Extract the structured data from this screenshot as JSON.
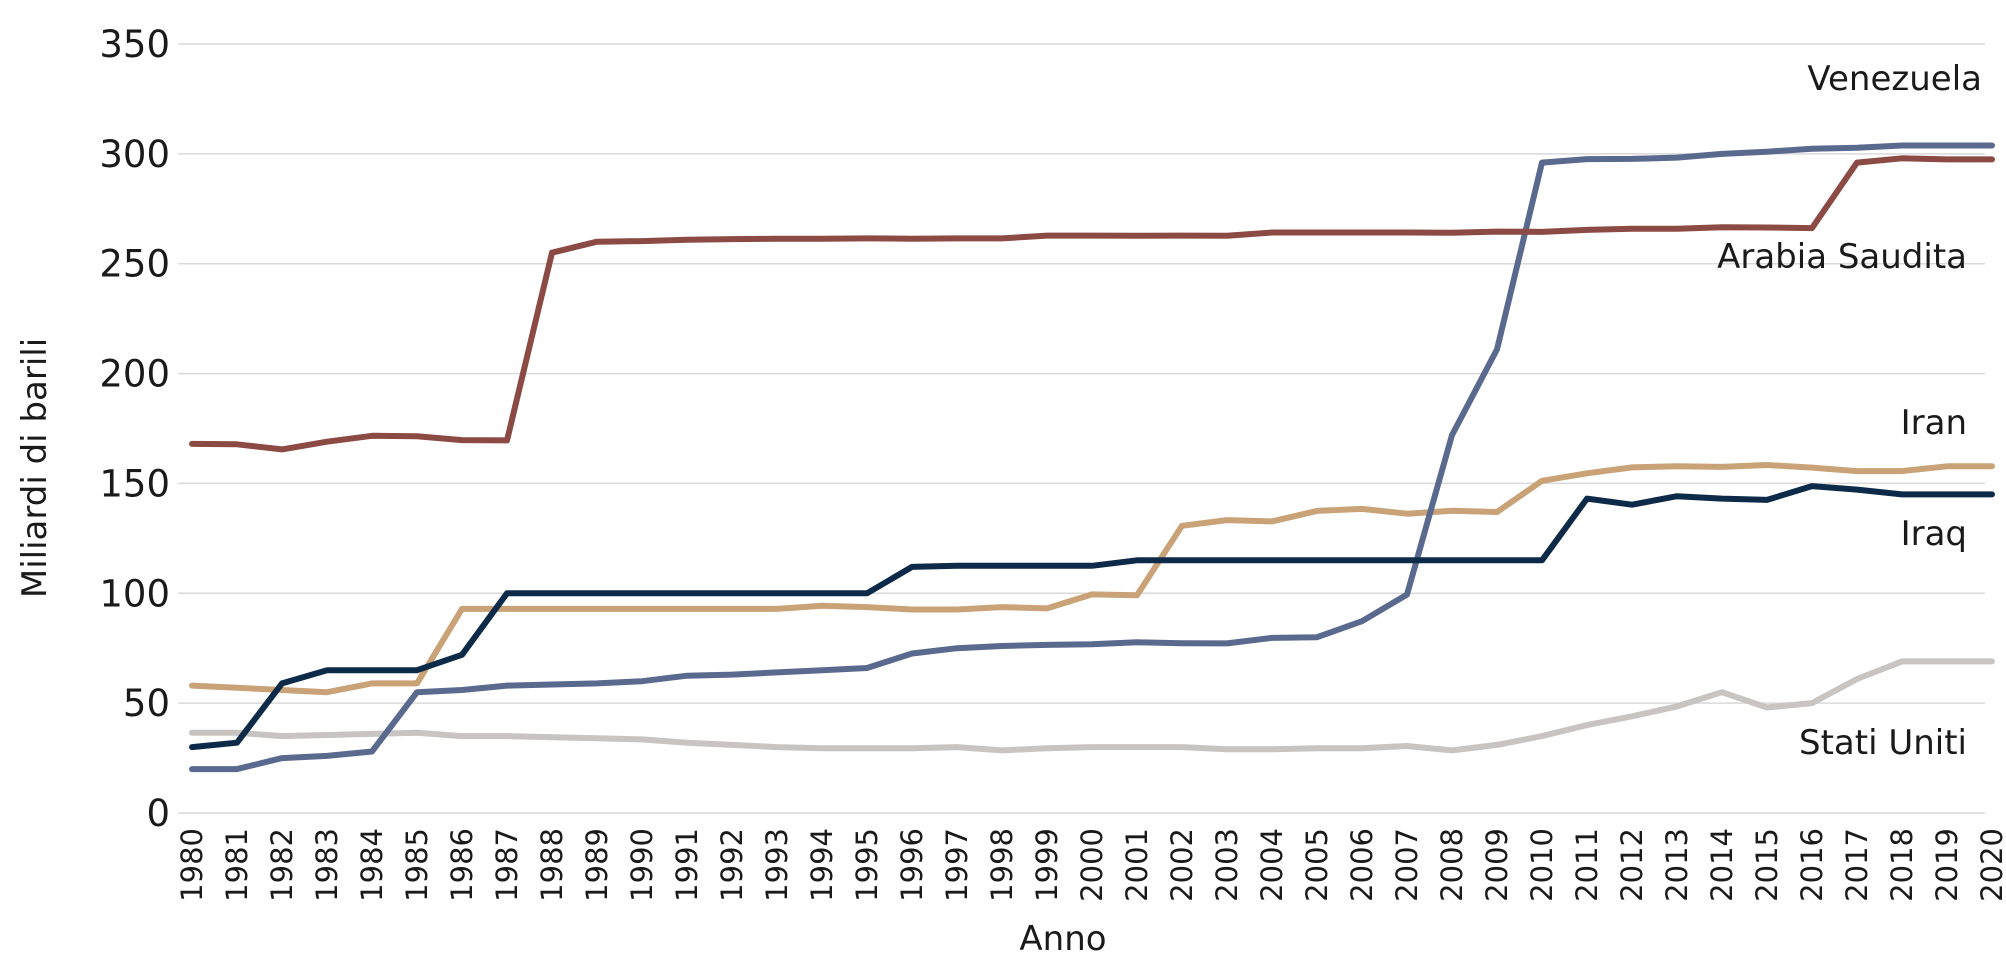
{
  "chart_data": {
    "type": "line",
    "title": "",
    "xlabel": "Anno",
    "ylabel": "Miliardi di barili",
    "ylim": [
      0,
      350
    ],
    "yticks": [
      0,
      50,
      100,
      150,
      200,
      250,
      300,
      350
    ],
    "grid": "horizontal",
    "legend": "inline labels at right",
    "categories": [
      "1980",
      "1981",
      "1982",
      "1983",
      "1984",
      "1985",
      "1986",
      "1987",
      "1988",
      "1989",
      "1990",
      "1991",
      "1992",
      "1993",
      "1994",
      "1995",
      "1996",
      "1997",
      "1998",
      "1999",
      "2000",
      "2001",
      "2002",
      "2003",
      "2004",
      "2005",
      "2006",
      "2007",
      "2008",
      "2009",
      "2010",
      "2011",
      "2012",
      "2013",
      "2014",
      "2015",
      "2016",
      "2017",
      "2018",
      "2019",
      "2020"
    ],
    "series": [
      {
        "name": "Venezuela",
        "color": "#5a6a8e",
        "values": [
          20,
          20,
          25,
          26,
          28,
          55,
          56,
          58,
          58.5,
          59,
          60,
          62.5,
          63,
          64,
          65,
          66,
          72.6,
          75,
          76,
          76.5,
          76.8,
          77.7,
          77.3,
          77.2,
          79.7,
          80,
          87.3,
          99.4,
          172,
          211,
          296,
          297.6,
          297.7,
          298.3,
          300,
          301,
          302.3,
          302.8,
          303.8,
          303.8,
          303.8
        ]
      },
      {
        "name": "Arabia Saudita",
        "color": "#8b4a44",
        "values": [
          168,
          167.8,
          165.5,
          169,
          171.7,
          171.5,
          169.7,
          169.6,
          255,
          260,
          260.3,
          260.9,
          261.2,
          261.4,
          261.4,
          261.5,
          261.4,
          261.5,
          261.5,
          262.8,
          262.8,
          262.7,
          262.8,
          262.7,
          264.2,
          264.2,
          264.2,
          264.2,
          264.1,
          264.6,
          264.5,
          265.4,
          265.9,
          265.9,
          266.6,
          266.5,
          266.2,
          296,
          298,
          297.5,
          297.5
        ]
      },
      {
        "name": "Iran",
        "color": "#c9a377",
        "values": [
          58,
          57,
          56,
          55,
          59,
          59,
          92.9,
          92.9,
          92.9,
          92.9,
          92.9,
          92.9,
          92.9,
          92.9,
          94.3,
          93.7,
          92.6,
          92.6,
          93.7,
          93.1,
          99.5,
          99.1,
          130.7,
          133.3,
          132.7,
          137.5,
          138.4,
          136.2,
          137.6,
          137,
          151.2,
          154.6,
          157.3,
          157.8,
          157.5,
          158.4,
          157.2,
          155.6,
          155.6,
          157.8,
          157.8
        ]
      },
      {
        "name": "Iraq",
        "color": "#0d2b48",
        "values": [
          30,
          32,
          59,
          65,
          65,
          65,
          72,
          100,
          100,
          100,
          100,
          100,
          100,
          100,
          100,
          100,
          112,
          112.5,
          112.5,
          112.5,
          112.5,
          115,
          115,
          115,
          115,
          115,
          115,
          115,
          115,
          115,
          115,
          143.1,
          140.3,
          144.2,
          143.1,
          142.5,
          148.8,
          147.2,
          145,
          145,
          145
        ]
      },
      {
        "name": "Stati Uniti",
        "color": "#c8c4c1",
        "values": [
          36.5,
          36.5,
          35,
          35.5,
          36,
          36.5,
          35,
          35,
          34.5,
          34,
          33.5,
          32,
          31,
          30,
          29.5,
          29.5,
          29.5,
          30,
          28.5,
          29.5,
          30,
          30,
          30,
          29,
          29,
          29.5,
          29.5,
          30.5,
          28.5,
          31,
          35,
          40,
          44,
          48.5,
          55,
          48,
          50,
          61,
          69,
          69,
          69
        ]
      }
    ]
  }
}
